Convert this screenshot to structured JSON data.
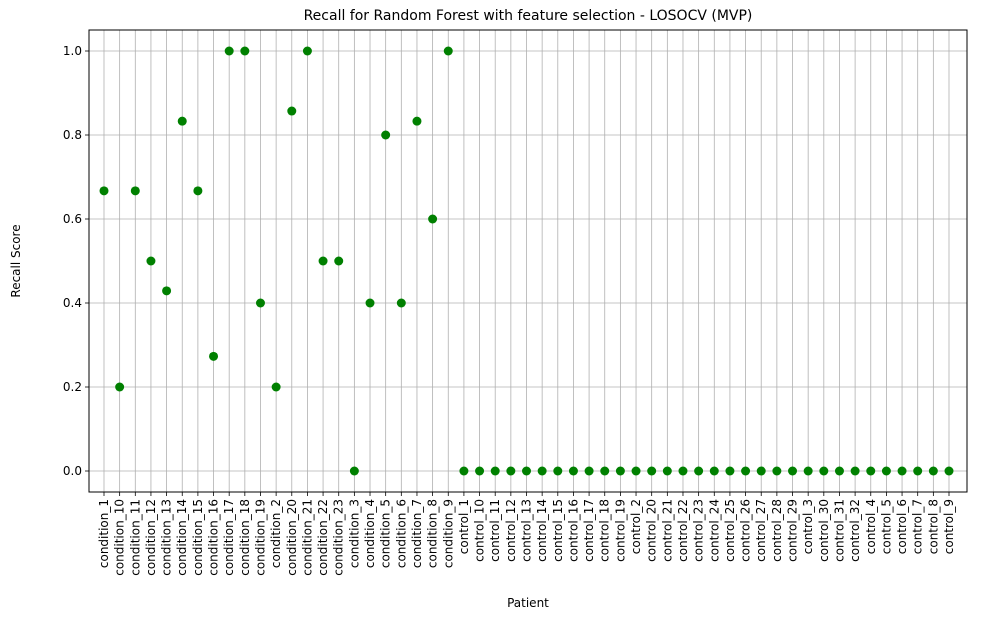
{
  "chart_data": {
    "type": "scatter",
    "title": "Recall for Random Forest with feature selection - LOSOCV (MVP)",
    "xlabel": "Patient",
    "ylabel": "Recall Score",
    "ylim": [
      -0.05,
      1.05
    ],
    "yticks": [
      0.0,
      0.2,
      0.4,
      0.6,
      0.8,
      1.0
    ],
    "ytick_labels": [
      "0.0",
      "0.2",
      "0.4",
      "0.6",
      "0.8",
      "1.0"
    ],
    "grid": true,
    "marker_color": "#008000",
    "categories": [
      "condition_1",
      "condition_10",
      "condition_11",
      "condition_12",
      "condition_13",
      "condition_14",
      "condition_15",
      "condition_16",
      "condition_17",
      "condition_18",
      "condition_19",
      "condition_2",
      "condition_20",
      "condition_21",
      "condition_22",
      "condition_23",
      "condition_3",
      "condition_4",
      "condition_5",
      "condition_6",
      "condition_7",
      "condition_8",
      "condition_9",
      "control_1",
      "control_10",
      "control_11",
      "control_12",
      "control_13",
      "control_14",
      "control_15",
      "control_16",
      "control_17",
      "control_18",
      "control_19",
      "control_2",
      "control_20",
      "control_21",
      "control_22",
      "control_23",
      "control_24",
      "control_25",
      "control_26",
      "control_27",
      "control_28",
      "control_29",
      "control_3",
      "control_30",
      "control_31",
      "control_32",
      "control_4",
      "control_5",
      "control_6",
      "control_7",
      "control_8",
      "control_9"
    ],
    "values": [
      0.667,
      0.2,
      0.667,
      0.5,
      0.429,
      0.833,
      0.667,
      0.273,
      1.0,
      1.0,
      0.4,
      0.2,
      0.857,
      1.0,
      0.5,
      0.5,
      0.0,
      0.4,
      0.8,
      0.4,
      0.833,
      0.6,
      1.0,
      0,
      0,
      0,
      0,
      0,
      0,
      0,
      0,
      0,
      0,
      0,
      0,
      0,
      0,
      0,
      0,
      0,
      0,
      0,
      0,
      0,
      0,
      0,
      0,
      0,
      0,
      0,
      0,
      0,
      0,
      0,
      0
    ]
  }
}
